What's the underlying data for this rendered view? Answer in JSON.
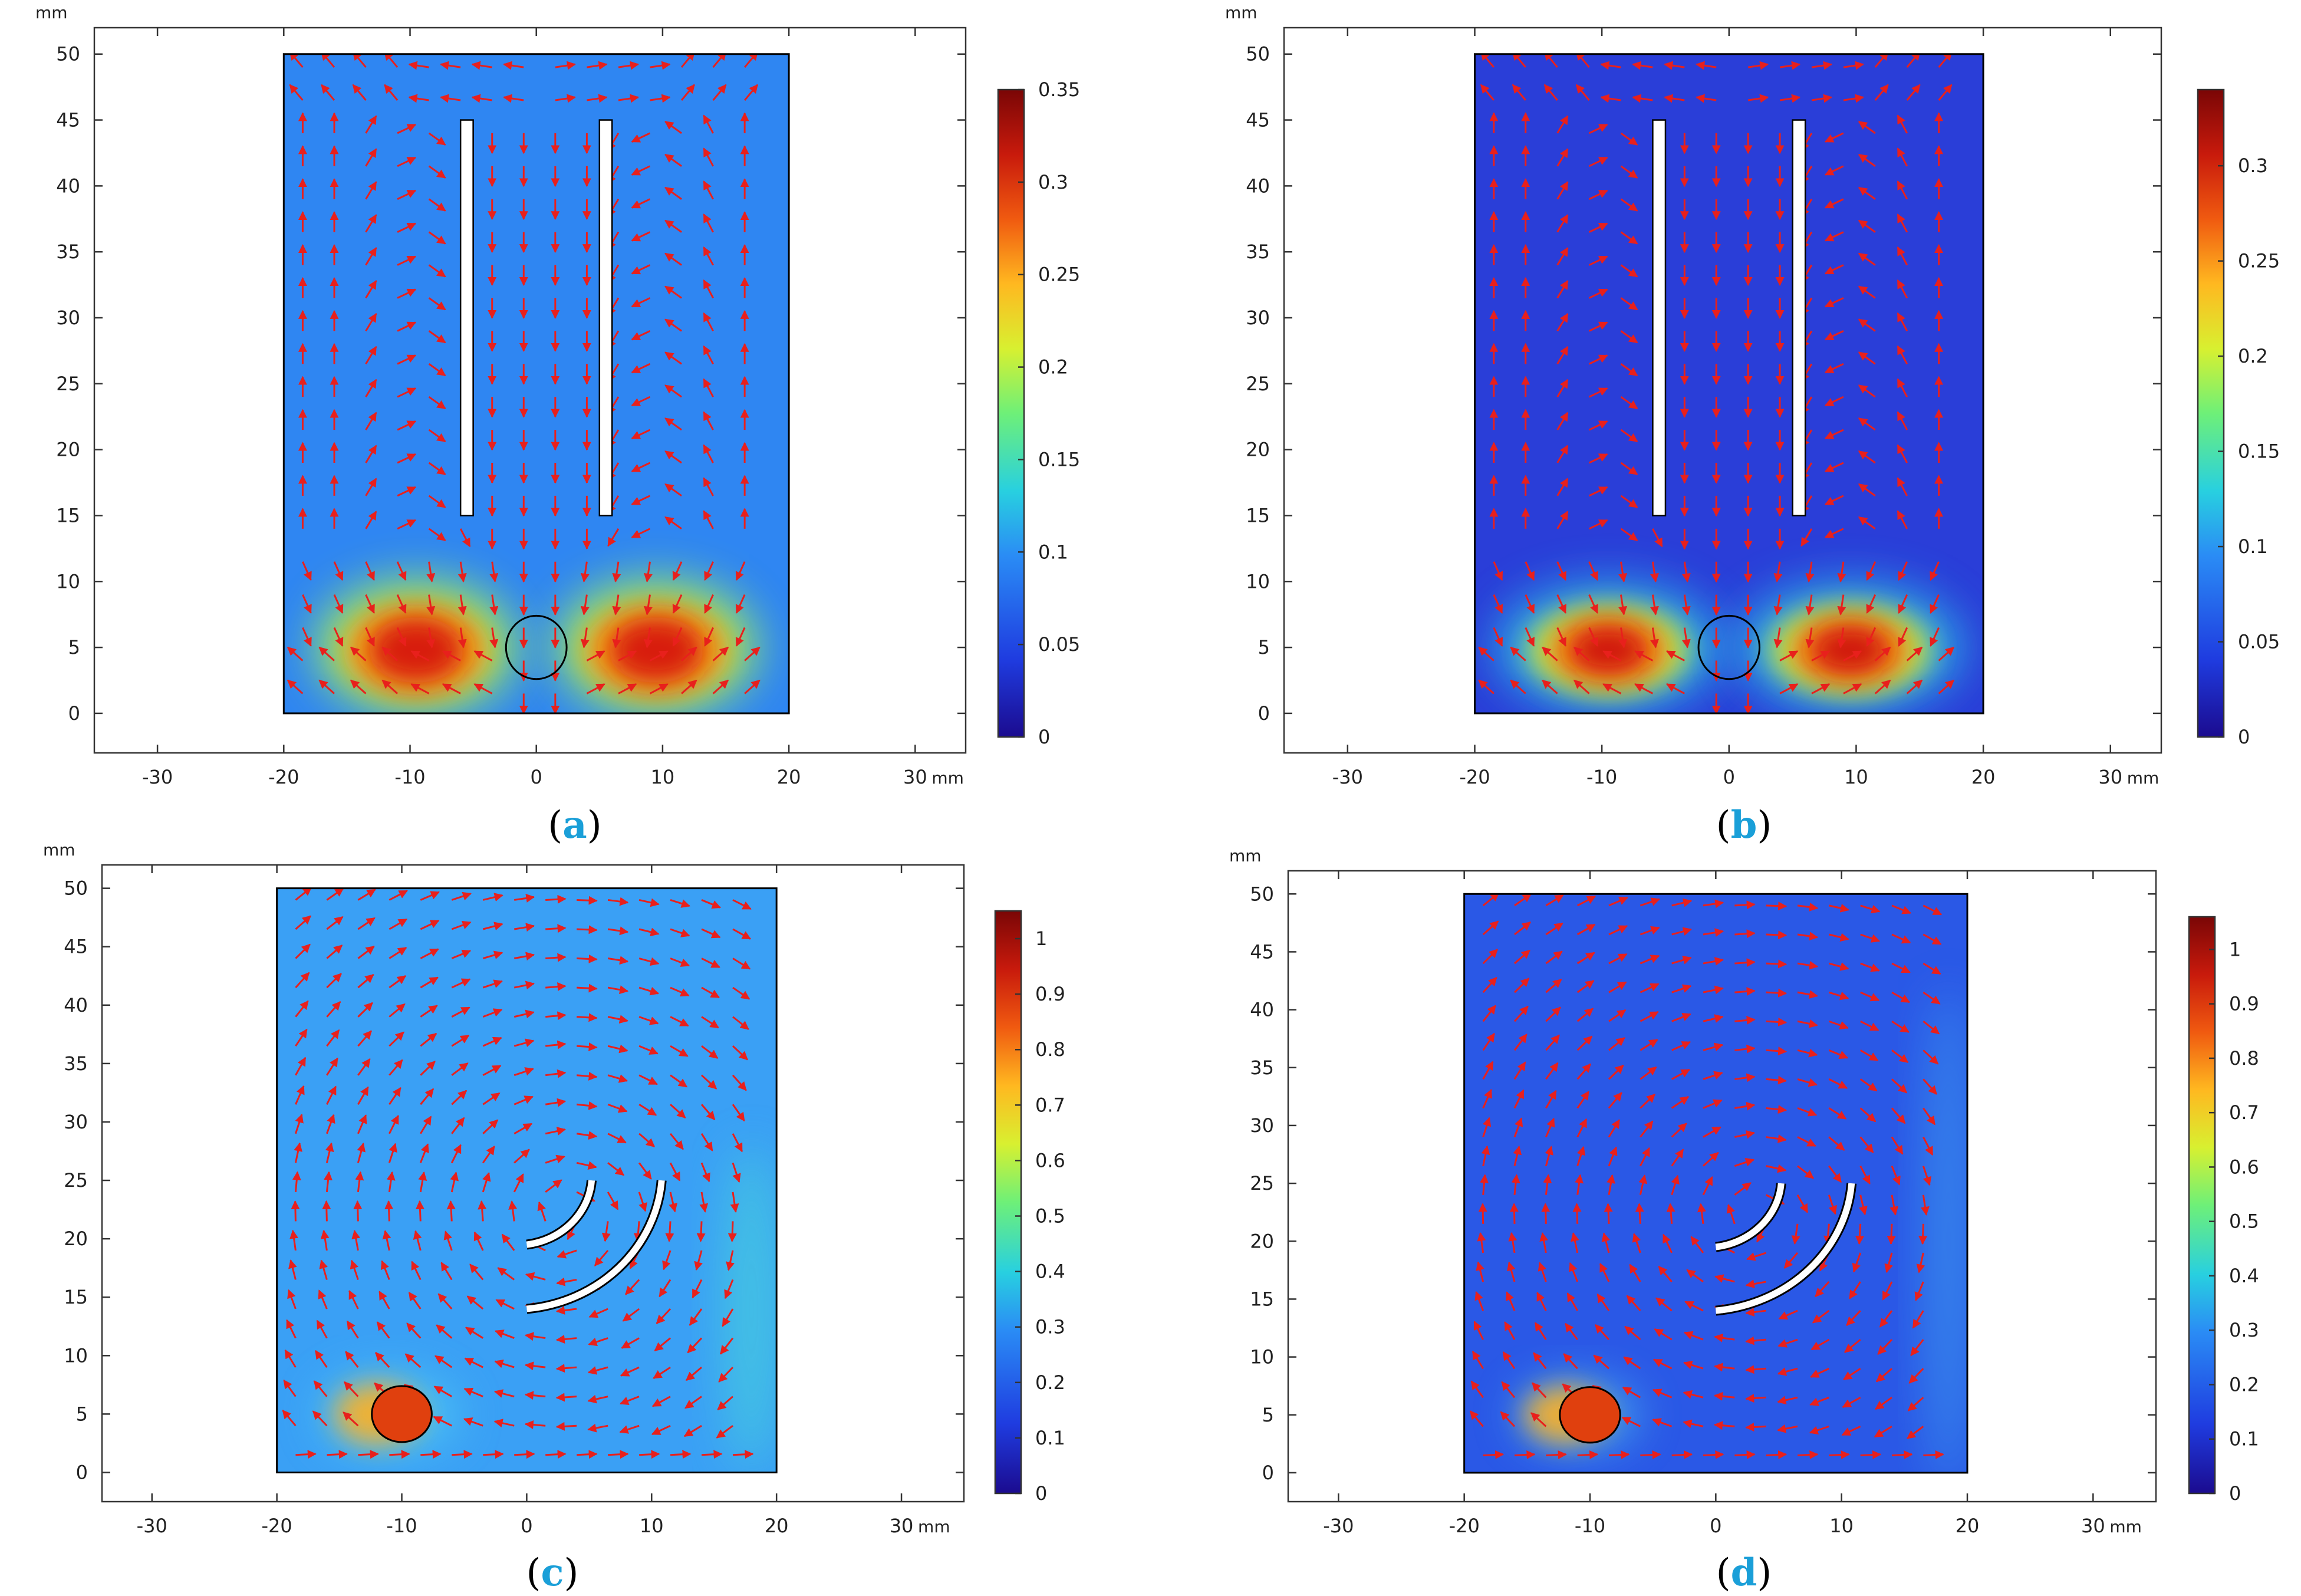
{
  "chart_data": [
    {
      "type": "heatmap",
      "label": "a",
      "unit": "mm",
      "xticks": [
        -30,
        -20,
        -10,
        0,
        10,
        20,
        30
      ],
      "yticks": [
        0,
        5,
        10,
        15,
        20,
        25,
        30,
        35,
        40,
        45,
        50
      ],
      "xlim": [
        -35,
        34
      ],
      "ylim": [
        -3,
        52
      ],
      "domain": {
        "x": [
          -20,
          20
        ],
        "y": [
          0,
          50
        ]
      },
      "colorbar": {
        "min": 0,
        "max": 0.35,
        "ticks": [
          0,
          0.05,
          0.1,
          0.15,
          0.2,
          0.25,
          0.3,
          0.35
        ]
      },
      "background": "#2f86f2",
      "obstacles": {
        "type": "plates",
        "plates": [
          {
            "x": [
              -6,
              -5
            ],
            "y": [
              15,
              45
            ]
          },
          {
            "x": [
              5,
              6
            ],
            "y": [
              15,
              45
            ]
          }
        ]
      },
      "object": {
        "x": 0,
        "y": 5,
        "r": 2.4,
        "filled": false
      },
      "hotspots": [
        {
          "x": -9.5,
          "y": 5,
          "rx": 8,
          "ry": 5.2,
          "color": "#b3ff45",
          "opacity": 0.8
        },
        {
          "x": 9.5,
          "y": 5,
          "rx": 8,
          "ry": 5.2,
          "color": "#b3ff45",
          "opacity": 0.8
        },
        {
          "x": -9.5,
          "y": 4.8,
          "rx": 5.8,
          "ry": 3.6,
          "color": "#ff9a10",
          "opacity": 0.9
        },
        {
          "x": 9.5,
          "y": 4.8,
          "rx": 5.8,
          "ry": 3.6,
          "color": "#ff9a10",
          "opacity": 0.9
        },
        {
          "x": -9.5,
          "y": 4.8,
          "rx": 3.8,
          "ry": 2.5,
          "color": "#d81e10",
          "opacity": 1
        },
        {
          "x": 9.5,
          "y": 4.8,
          "rx": 3.8,
          "ry": 2.5,
          "color": "#d81e10",
          "opacity": 1
        }
      ],
      "flow": "symmetric"
    },
    {
      "type": "heatmap",
      "label": "b",
      "unit": "mm",
      "xticks": [
        -30,
        -20,
        -10,
        0,
        10,
        20,
        30
      ],
      "yticks": [
        0,
        5,
        10,
        15,
        20,
        25,
        30,
        35,
        40,
        45,
        50
      ],
      "xlim": [
        -35,
        34
      ],
      "ylim": [
        -3,
        52
      ],
      "domain": {
        "x": [
          -20,
          20
        ],
        "y": [
          0,
          50
        ]
      },
      "colorbar": {
        "min": 0,
        "max": 0.34,
        "ticks": [
          0,
          0.05,
          0.1,
          0.15,
          0.2,
          0.25,
          0.3
        ]
      },
      "background": "#2a3ed8",
      "obstacles": {
        "type": "plates",
        "plates": [
          {
            "x": [
              -6,
              -5
            ],
            "y": [
              15,
              45
            ]
          },
          {
            "x": [
              5,
              6
            ],
            "y": [
              15,
              45
            ]
          }
        ]
      },
      "object": {
        "x": 0,
        "y": 5,
        "r": 2.4,
        "filled": false
      },
      "hotspots": [
        {
          "x": -9.5,
          "y": 5,
          "rx": 9,
          "ry": 5,
          "color": "#2fc8e8",
          "opacity": 0.75
        },
        {
          "x": 9.5,
          "y": 5,
          "rx": 9,
          "ry": 5,
          "color": "#2fc8e8",
          "opacity": 0.75
        },
        {
          "x": -9.5,
          "y": 4.8,
          "rx": 6.4,
          "ry": 3.5,
          "color": "#c8f03a",
          "opacity": 0.85
        },
        {
          "x": 9.5,
          "y": 4.8,
          "rx": 6.4,
          "ry": 3.5,
          "color": "#c8f03a",
          "opacity": 0.85
        },
        {
          "x": -9.5,
          "y": 4.8,
          "rx": 4.8,
          "ry": 2.6,
          "color": "#ff8a10",
          "opacity": 0.95
        },
        {
          "x": 9.5,
          "y": 4.8,
          "rx": 4.8,
          "ry": 2.6,
          "color": "#ff8a10",
          "opacity": 0.95
        },
        {
          "x": -9.5,
          "y": 4.8,
          "rx": 3.2,
          "ry": 1.9,
          "color": "#d0180e",
          "opacity": 1
        },
        {
          "x": 9.5,
          "y": 4.8,
          "rx": 3.2,
          "ry": 1.9,
          "color": "#d0180e",
          "opacity": 1
        }
      ],
      "flow": "symmetric"
    },
    {
      "type": "heatmap",
      "label": "c",
      "unit": "mm",
      "xticks": [
        -30,
        -20,
        -10,
        0,
        10,
        20,
        30
      ],
      "yticks": [
        0,
        5,
        10,
        15,
        20,
        25,
        30,
        35,
        40,
        45,
        50
      ],
      "xlim": [
        -34,
        35
      ],
      "ylim": [
        -2.5,
        52
      ],
      "domain": {
        "x": [
          -20,
          20
        ],
        "y": [
          0,
          50
        ]
      },
      "colorbar": {
        "min": 0,
        "max": 1.05,
        "ticks": [
          0,
          0.1,
          0.2,
          0.3,
          0.4,
          0.5,
          0.6,
          0.7,
          0.8,
          0.9,
          1
        ]
      },
      "background": "#3aa0f5",
      "obstacles": {
        "type": "arcs",
        "arcs": [
          {
            "from": [
              0,
              19.5
            ],
            "to": [
              5.2,
              25
            ],
            "radius": 6
          },
          {
            "from": [
              0,
              14
            ],
            "to": [
              10.8,
              25
            ],
            "radius": 12
          }
        ]
      },
      "object": {
        "x": -10,
        "y": 5,
        "r": 2.4,
        "filled": true
      },
      "hotspots": [
        {
          "x": -11,
          "y": 5,
          "rx": 5.5,
          "ry": 3.4,
          "color": "#58d8f0",
          "opacity": 0.6
        },
        {
          "x": 18,
          "y": 14,
          "rx": 2.4,
          "ry": 14,
          "color": "#4ad8d8",
          "opacity": 0.6
        },
        {
          "x": -12,
          "y": 5,
          "rx": 3.4,
          "ry": 2.6,
          "color": "#ffb020",
          "opacity": 0.9
        }
      ],
      "flow": "vortex"
    },
    {
      "type": "heatmap",
      "label": "d",
      "unit": "mm",
      "xticks": [
        -30,
        -20,
        -10,
        0,
        10,
        20,
        30
      ],
      "yticks": [
        0,
        5,
        10,
        15,
        20,
        25,
        30,
        35,
        40,
        45,
        50
      ],
      "xlim": [
        -34,
        35
      ],
      "ylim": [
        -2.5,
        52
      ],
      "domain": {
        "x": [
          -20,
          20
        ],
        "y": [
          0,
          50
        ]
      },
      "colorbar": {
        "min": 0,
        "max": 1.06,
        "ticks": [
          0,
          0.1,
          0.2,
          0.3,
          0.4,
          0.5,
          0.6,
          0.7,
          0.8,
          0.9,
          1
        ]
      },
      "background": "#2a58e6",
      "obstacles": {
        "type": "arcs",
        "arcs": [
          {
            "from": [
              0,
              19.5
            ],
            "to": [
              5.2,
              25
            ],
            "radius": 6
          },
          {
            "from": [
              0,
              14
            ],
            "to": [
              10.8,
              25
            ],
            "radius": 12
          }
        ]
      },
      "object": {
        "x": -10,
        "y": 5,
        "r": 2.4,
        "filled": true
      },
      "hotspots": [
        {
          "x": 18.5,
          "y": 20,
          "rx": 2,
          "ry": 22,
          "color": "#3fa8f0",
          "opacity": 0.55
        },
        {
          "x": -11,
          "y": 5,
          "rx": 4.8,
          "ry": 3,
          "color": "#58d8f0",
          "opacity": 0.6
        },
        {
          "x": -12,
          "y": 5,
          "rx": 3.2,
          "ry": 2.4,
          "color": "#ffb020",
          "opacity": 0.9
        }
      ],
      "flow": "vortex"
    }
  ],
  "captions": [
    "a",
    "b",
    "c",
    "d"
  ]
}
